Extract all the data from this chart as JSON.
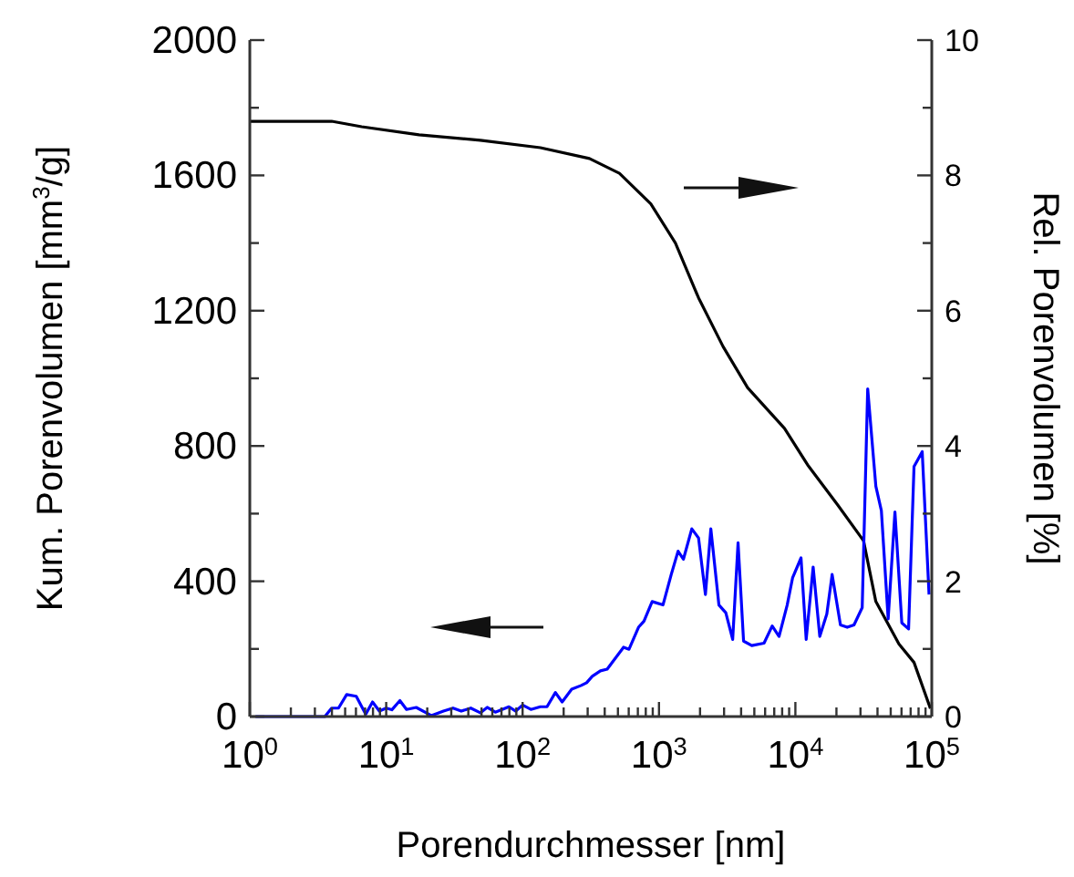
{
  "chart_data": {
    "type": "line",
    "xlabel": "Porendurchmesser [nm]",
    "ylabel": "Kum. Porenvolumen [mm$^{3}$/g]",
    "y2label": "Rel. Porenvolumen [%]",
    "log": "x",
    "grid": false,
    "marker": "none",
    "line_style": "solid",
    "xlim": [
      1,
      100000
    ],
    "xticks": [
      {
        "value": 1,
        "label": "10$^{0}$"
      },
      {
        "value": 2,
        "label": null
      },
      {
        "value": 3,
        "label": null
      },
      {
        "value": 4,
        "label": null
      },
      {
        "value": 5,
        "label": null
      },
      {
        "value": 6,
        "label": null
      },
      {
        "value": 7,
        "label": null
      },
      {
        "value": 8,
        "label": null
      },
      {
        "value": 9,
        "label": null
      },
      {
        "value": 10,
        "label": "10$^{1}$"
      },
      {
        "value": 20,
        "label": null
      },
      {
        "value": 30,
        "label": null
      },
      {
        "value": 40,
        "label": null
      },
      {
        "value": 50,
        "label": null
      },
      {
        "value": 60,
        "label": null
      },
      {
        "value": 70,
        "label": null
      },
      {
        "value": 80,
        "label": null
      },
      {
        "value": 90,
        "label": null
      },
      {
        "value": 100,
        "label": "10$^{2}$"
      },
      {
        "value": 200,
        "label": null
      },
      {
        "value": 300,
        "label": null
      },
      {
        "value": 400,
        "label": null
      },
      {
        "value": 500,
        "label": null
      },
      {
        "value": 600,
        "label": null
      },
      {
        "value": 700,
        "label": null
      },
      {
        "value": 800,
        "label": null
      },
      {
        "value": 900,
        "label": null
      },
      {
        "value": 1000,
        "label": "10$^{3}$"
      },
      {
        "value": 2000,
        "label": null
      },
      {
        "value": 3000,
        "label": null
      },
      {
        "value": 4000,
        "label": null
      },
      {
        "value": 5000,
        "label": null
      },
      {
        "value": 6000,
        "label": null
      },
      {
        "value": 7000,
        "label": null
      },
      {
        "value": 8000,
        "label": null
      },
      {
        "value": 9000,
        "label": null
      },
      {
        "value": 10000,
        "label": "10$^{4}$"
      },
      {
        "value": 20000,
        "label": null
      },
      {
        "value": 30000,
        "label": null
      },
      {
        "value": 40000,
        "label": null
      },
      {
        "value": 50000,
        "label": null
      },
      {
        "value": 60000,
        "label": null
      },
      {
        "value": 70000,
        "label": null
      },
      {
        "value": 80000,
        "label": null
      },
      {
        "value": 90000,
        "label": null
      },
      {
        "value": 100000,
        "label": "10$^{5}$"
      }
    ],
    "ylim": [
      0,
      2000
    ],
    "yticks": [
      0,
      {
        "value": 200,
        "label": null
      },
      400,
      {
        "value": 600,
        "label": null
      },
      800,
      {
        "value": 1000,
        "label": null
      },
      1200,
      {
        "value": 1400,
        "label": null
      },
      1600,
      {
        "value": 1800,
        "label": null
      },
      2000
    ],
    "y2lim": [
      0,
      10
    ],
    "y2ticks": [
      0,
      {
        "value": 1,
        "label": null
      },
      2,
      {
        "value": 3,
        "label": null
      },
      4,
      {
        "value": 5,
        "label": null
      },
      6,
      {
        "value": 7,
        "label": null
      },
      8,
      {
        "value": 9,
        "label": null
      },
      10
    ],
    "series": [
      {
        "color": "#000000",
        "axis": "y2",
        "x": [
          1,
          3.98,
          6.61,
          17.4,
          49,
          135,
          309,
          513,
          871,
          1320,
          1950,
          2950,
          4470,
          8320,
          12300,
          20400,
          31600,
          38900,
          57500,
          74100,
          97700
        ],
        "values": [
          8.8,
          8.8,
          8.72,
          8.6,
          8.52,
          8.41,
          8.25,
          8.03,
          7.58,
          7.0,
          6.19,
          5.47,
          4.86,
          4.26,
          3.72,
          3.13,
          2.6,
          1.7,
          1.07,
          0.8,
          0.12
        ]
      },
      {
        "color": "#0000ff",
        "x": [
          1.1,
          3.55,
          3.98,
          4.47,
          5.13,
          6.03,
          7.08,
          7.94,
          8.91,
          10,
          11,
          12.6,
          14.1,
          16.6,
          21.4,
          26.3,
          30.9,
          35.5,
          41.7,
          49,
          55,
          63.1,
          79.4,
          89.1,
          100,
          115,
          135,
          151,
          174,
          195,
          229,
          269,
          295,
          324,
          372,
          417,
          550,
          603,
          708,
          776,
          891,
          1070,
          1230,
          1380,
          1510,
          1740,
          1950,
          2190,
          2400,
          2750,
          3090,
          3470,
          3800,
          4170,
          4790,
          5890,
          6760,
          7590,
          8710,
          9550,
          11000,
          12000,
          13500,
          15100,
          17000,
          18600,
          21400,
          24000,
          26900,
          30900,
          33900,
          38900,
          42700,
          47900,
          53700,
          60300,
          67600,
          74100,
          85100,
          95500
        ],
        "values": [
          0,
          0,
          25,
          25,
          65,
          60,
          7,
          43,
          16,
          25,
          20,
          47,
          21,
          27,
          3,
          16,
          25,
          16,
          25,
          11,
          27,
          13,
          29,
          16,
          34,
          21,
          29,
          29,
          71,
          43,
          81,
          92,
          100,
          119,
          135,
          140,
          205,
          199,
          264,
          282,
          340,
          330,
          420,
          489,
          465,
          555,
          528,
          361,
          555,
          330,
          307,
          228,
          514,
          223,
          210,
          217,
          268,
          237,
          330,
          411,
          469,
          228,
          442,
          237,
          303,
          420,
          271,
          264,
          271,
          322,
          969,
          681,
          609,
          289,
          605,
          277,
          259,
          739,
          783,
          361
        ]
      }
    ]
  }
}
